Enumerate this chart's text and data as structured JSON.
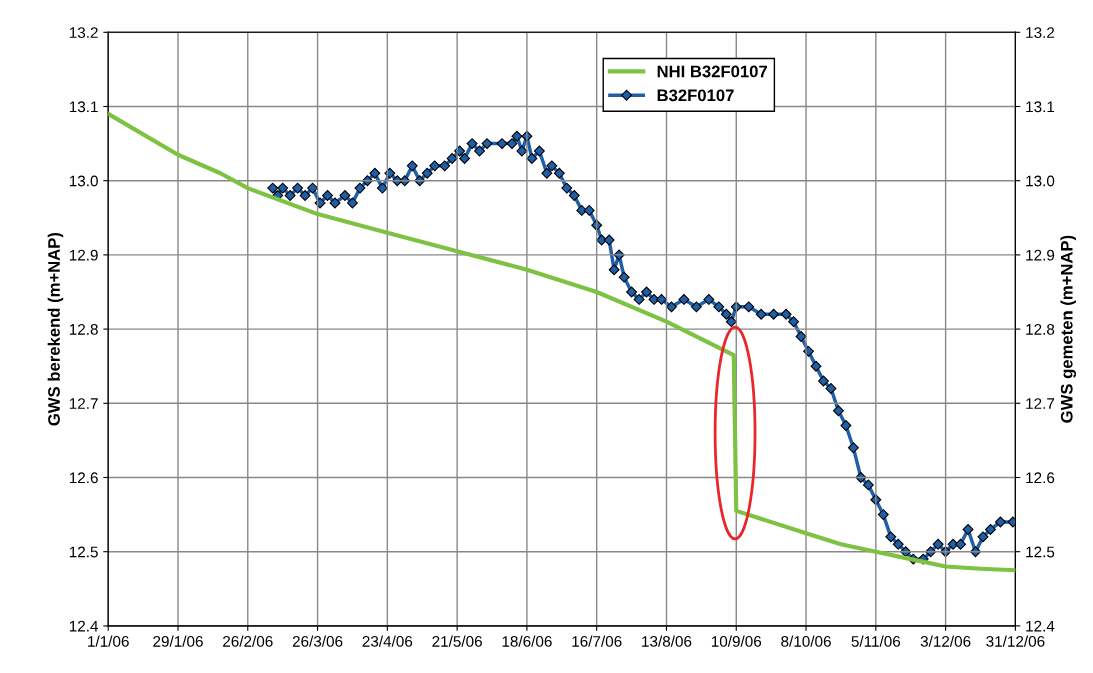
{
  "chart_data": {
    "type": "line",
    "ylabel": "GWS berekend (m+NAP)",
    "y2label": "GWS gemeten (m+NAP)",
    "xlim": [
      "2006-01-01",
      "2006-12-31"
    ],
    "xticks": [
      {
        "value": "2006-01-01",
        "label": "1/1/06"
      },
      {
        "value": "2006-01-29",
        "label": "29/1/06"
      },
      {
        "value": "2006-02-26",
        "label": "26/2/06"
      },
      {
        "value": "2006-03-26",
        "label": "26/3/06"
      },
      {
        "value": "2006-04-23",
        "label": "23/4/06"
      },
      {
        "value": "2006-05-21",
        "label": "21/5/06"
      },
      {
        "value": "2006-06-18",
        "label": "18/6/06"
      },
      {
        "value": "2006-07-16",
        "label": "16/7/06"
      },
      {
        "value": "2006-08-13",
        "label": "13/8/06"
      },
      {
        "value": "2006-09-10",
        "label": "10/9/06"
      },
      {
        "value": "2006-10-08",
        "label": "8/10/06"
      },
      {
        "value": "2006-11-05",
        "label": "5/11/06"
      },
      {
        "value": "2006-12-03",
        "label": "3/12/06"
      },
      {
        "value": "2006-12-31",
        "label": "31/12/06"
      }
    ],
    "ylim": [
      12.4,
      13.2
    ],
    "yticks": [
      12.4,
      12.5,
      12.6,
      12.7,
      12.8,
      12.9,
      {
        "value": 13,
        "label": "13.0"
      },
      13.1,
      13.2
    ],
    "y2lim": [
      12.4,
      13.2
    ],
    "y2ticks": [
      12.4,
      12.5,
      12.6,
      12.7,
      12.8,
      12.9,
      {
        "value": 13,
        "label": "13.0"
      },
      13.1,
      13.2
    ],
    "grid": true,
    "legend": "top center",
    "series": [
      {
        "name": "NHI B32F0107",
        "color": "#7dc242",
        "marker": "none",
        "x": [
          "2006-01-01",
          "2006-01-29",
          "2006-02-15",
          "2006-02-26",
          "2006-03-26",
          "2006-04-23",
          "2006-05-21",
          "2006-06-18",
          "2006-07-16",
          "2006-08-13",
          "2006-09-09",
          "2006-09-10",
          "2006-10-08",
          "2006-10-22",
          "2006-11-05",
          "2006-11-19",
          "2006-12-03",
          "2006-12-17",
          "2006-12-31"
        ],
        "values": [
          13.09,
          13.035,
          13.01,
          12.99,
          12.955,
          12.93,
          12.905,
          12.88,
          12.85,
          12.81,
          12.765,
          12.555,
          12.525,
          12.51,
          12.5,
          12.49,
          12.48,
          12.477,
          12.475
        ]
      },
      {
        "name": "B32F0107",
        "color": "#1f5fa8",
        "marker": "diamond",
        "axis": "y2",
        "x": [
          "2006-03-08",
          "2006-03-10",
          "2006-03-12",
          "2006-03-15",
          "2006-03-18",
          "2006-03-21",
          "2006-03-24",
          "2006-03-27",
          "2006-03-30",
          "2006-04-02",
          "2006-04-06",
          "2006-04-09",
          "2006-04-12",
          "2006-04-15",
          "2006-04-18",
          "2006-04-21",
          "2006-04-24",
          "2006-04-27",
          "2006-04-30",
          "2006-05-03",
          "2006-05-06",
          "2006-05-09",
          "2006-05-12",
          "2006-05-16",
          "2006-05-19",
          "2006-05-22",
          "2006-05-24",
          "2006-05-27",
          "2006-05-30",
          "2006-06-02",
          "2006-06-08",
          "2006-06-12",
          "2006-06-14",
          "2006-06-16",
          "2006-06-18",
          "2006-06-20",
          "2006-06-23",
          "2006-06-26",
          "2006-06-28",
          "2006-07-01",
          "2006-07-04",
          "2006-07-07",
          "2006-07-10",
          "2006-07-13",
          "2006-07-16",
          "2006-07-18",
          "2006-07-21",
          "2006-07-23",
          "2006-07-25",
          "2006-07-27",
          "2006-07-30",
          "2006-08-02",
          "2006-08-05",
          "2006-08-08",
          "2006-08-11",
          "2006-08-15",
          "2006-08-20",
          "2006-08-25",
          "2006-08-30",
          "2006-09-03",
          "2006-09-06",
          "2006-09-08",
          "2006-09-10",
          "2006-09-15",
          "2006-09-20",
          "2006-09-25",
          "2006-09-30",
          "2006-10-03",
          "2006-10-06",
          "2006-10-09",
          "2006-10-12",
          "2006-10-15",
          "2006-10-18",
          "2006-10-21",
          "2006-10-24",
          "2006-10-27",
          "2006-10-30",
          "2006-11-02",
          "2006-11-05",
          "2006-11-08",
          "2006-11-11",
          "2006-11-14",
          "2006-11-17",
          "2006-11-20",
          "2006-11-24",
          "2006-11-27",
          "2006-11-30",
          "2006-12-03",
          "2006-12-06",
          "2006-12-09",
          "2006-12-12",
          "2006-12-15",
          "2006-12-18",
          "2006-12-21",
          "2006-12-25",
          "2006-12-30"
        ],
        "values": [
          12.99,
          12.98,
          12.99,
          12.98,
          12.99,
          12.98,
          12.99,
          12.97,
          12.98,
          12.97,
          12.98,
          12.97,
          12.99,
          13.0,
          13.01,
          12.99,
          13.01,
          13.0,
          13.0,
          13.02,
          13.0,
          13.01,
          13.02,
          13.02,
          13.03,
          13.04,
          13.03,
          13.05,
          13.04,
          13.05,
          13.05,
          13.05,
          13.06,
          13.04,
          13.06,
          13.03,
          13.04,
          13.01,
          13.02,
          13.01,
          12.99,
          12.98,
          12.96,
          12.96,
          12.94,
          12.92,
          12.92,
          12.88,
          12.9,
          12.87,
          12.85,
          12.84,
          12.85,
          12.84,
          12.84,
          12.83,
          12.84,
          12.83,
          12.84,
          12.83,
          12.82,
          12.81,
          12.83,
          12.83,
          12.82,
          12.82,
          12.82,
          12.81,
          12.79,
          12.77,
          12.75,
          12.73,
          12.72,
          12.69,
          12.67,
          12.64,
          12.6,
          12.59,
          12.57,
          12.55,
          12.52,
          12.51,
          12.5,
          12.49,
          12.49,
          12.5,
          12.51,
          12.5,
          12.51,
          12.51,
          12.53,
          12.5,
          12.52,
          12.53,
          12.54,
          12.54
        ]
      }
    ]
  }
}
